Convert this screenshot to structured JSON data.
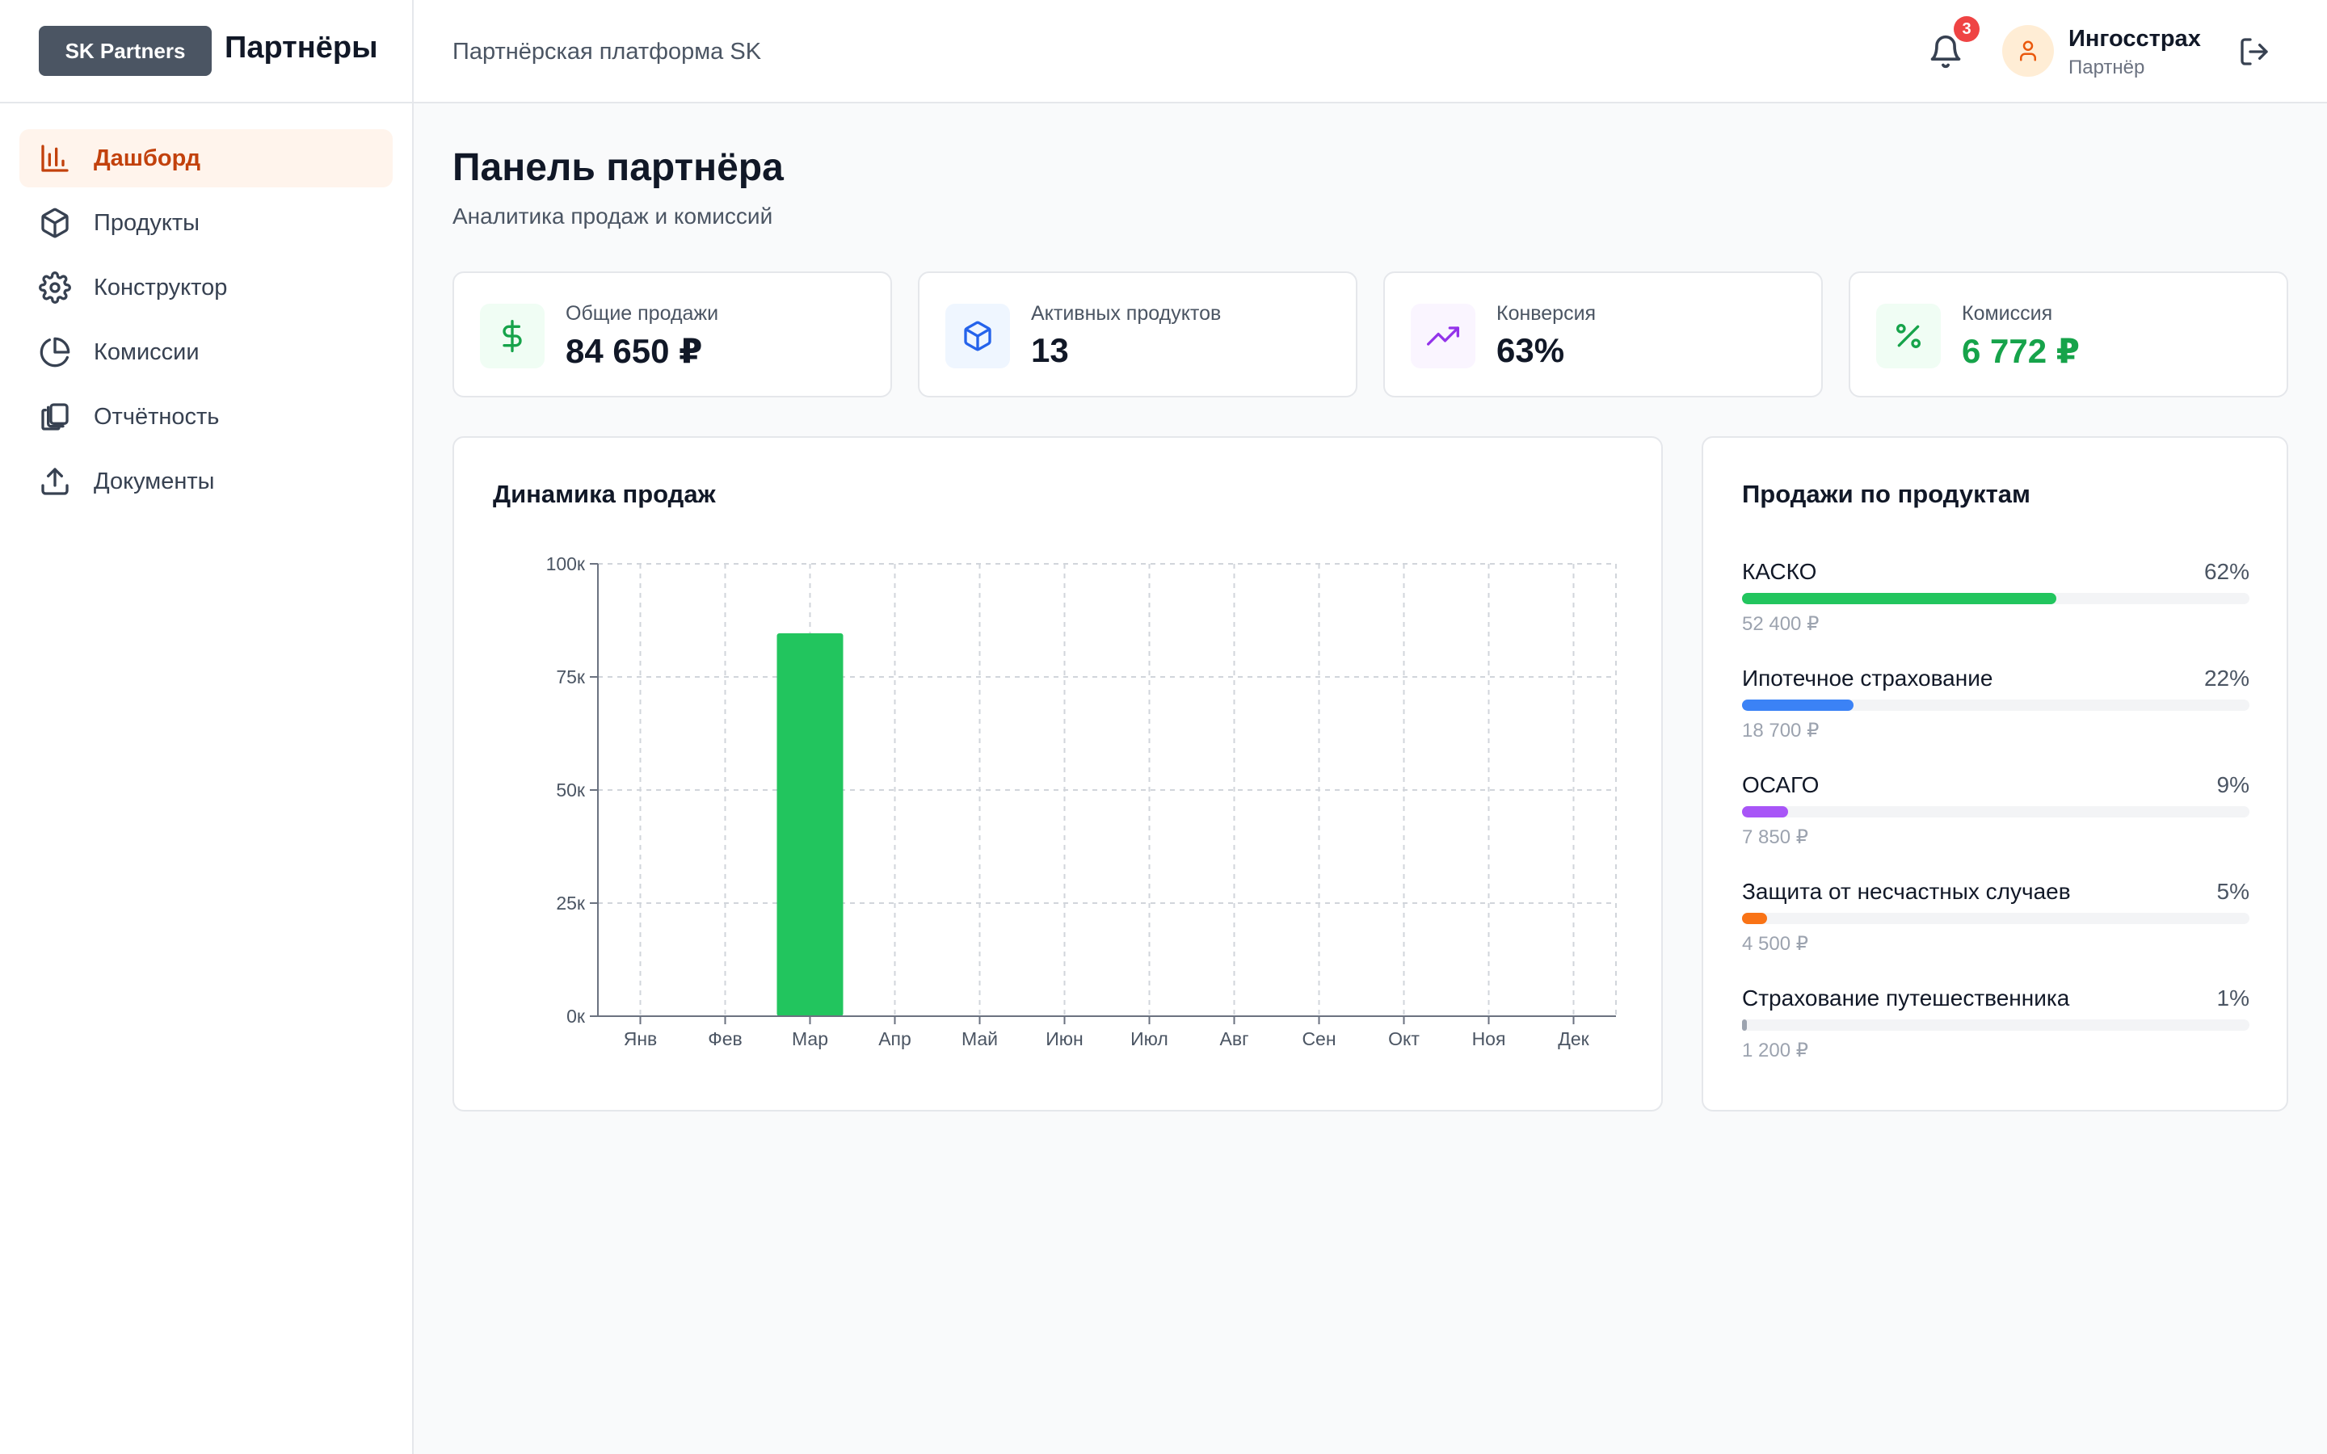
{
  "header": {
    "brand_badge": "SK Partners",
    "brand_title": "Партнёры",
    "platform_title": "Партнёрская платформа SK",
    "notification_count": "3",
    "user_name": "Ингосстрах",
    "user_role": "Партнёр"
  },
  "sidebar": {
    "items": [
      {
        "label": "Дашборд",
        "icon": "bar-chart-icon",
        "active": true
      },
      {
        "label": "Продукты",
        "icon": "package-icon",
        "active": false
      },
      {
        "label": "Конструктор",
        "icon": "gear-icon",
        "active": false
      },
      {
        "label": "Комиссии",
        "icon": "pie-chart-icon",
        "active": false
      },
      {
        "label": "Отчётность",
        "icon": "copy-icon",
        "active": false
      },
      {
        "label": "Документы",
        "icon": "upload-icon",
        "active": false
      }
    ]
  },
  "page": {
    "title": "Панель партнёра",
    "subtitle": "Аналитика продаж и комиссий"
  },
  "stats": [
    {
      "label": "Общие продажи",
      "value": "84 650 ₽",
      "icon": "dollar-icon",
      "color": "#16a34a",
      "bg": "#f0fdf4"
    },
    {
      "label": "Активных продуктов",
      "value": "13",
      "icon": "package-icon",
      "color": "#2563eb",
      "bg": "#eff6ff"
    },
    {
      "label": "Конверсия",
      "value": "63%",
      "icon": "trending-up-icon",
      "color": "#9333ea",
      "bg": "#faf5ff"
    },
    {
      "label": "Комиссия",
      "value": "6 772 ₽",
      "icon": "percent-icon",
      "color": "#16a34a",
      "bg": "#f0fdf4"
    }
  ],
  "sales_chart": {
    "title": "Динамика продаж"
  },
  "chart_data": {
    "type": "bar",
    "title": "Динамика продаж",
    "categories": [
      "Янв",
      "Фев",
      "Мар",
      "Апр",
      "Май",
      "Июн",
      "Июл",
      "Авг",
      "Сен",
      "Окт",
      "Ноя",
      "Дек"
    ],
    "values": [
      0,
      0,
      84650,
      0,
      0,
      0,
      0,
      0,
      0,
      0,
      0,
      0
    ],
    "ylim": [
      0,
      100000
    ],
    "yticks": [
      0,
      25000,
      50000,
      75000,
      100000
    ],
    "ytick_labels": [
      "0к",
      "25к",
      "50к",
      "75к",
      "100к"
    ],
    "xlabel": "",
    "ylabel": "",
    "grid": true,
    "bar_color": "#22c55e"
  },
  "products": {
    "title": "Продажи по продуктам",
    "items": [
      {
        "name": "КАСКО",
        "pct": "62%",
        "share": 0.62,
        "amount": "52 400 ₽",
        "color": "#22c55e"
      },
      {
        "name": "Ипотечное страхование",
        "pct": "22%",
        "share": 0.22,
        "amount": "18 700 ₽",
        "color": "#3b82f6"
      },
      {
        "name": "ОСАГО",
        "pct": "9%",
        "share": 0.09,
        "amount": "7 850 ₽",
        "color": "#a855f7"
      },
      {
        "name": "Защита от несчастных случаев",
        "pct": "5%",
        "share": 0.05,
        "amount": "4 500 ₽",
        "color": "#f97316"
      },
      {
        "name": "Страхование путешественника",
        "pct": "1%",
        "share": 0.01,
        "amount": "1 200 ₽",
        "color": "#9ca3af"
      }
    ]
  }
}
